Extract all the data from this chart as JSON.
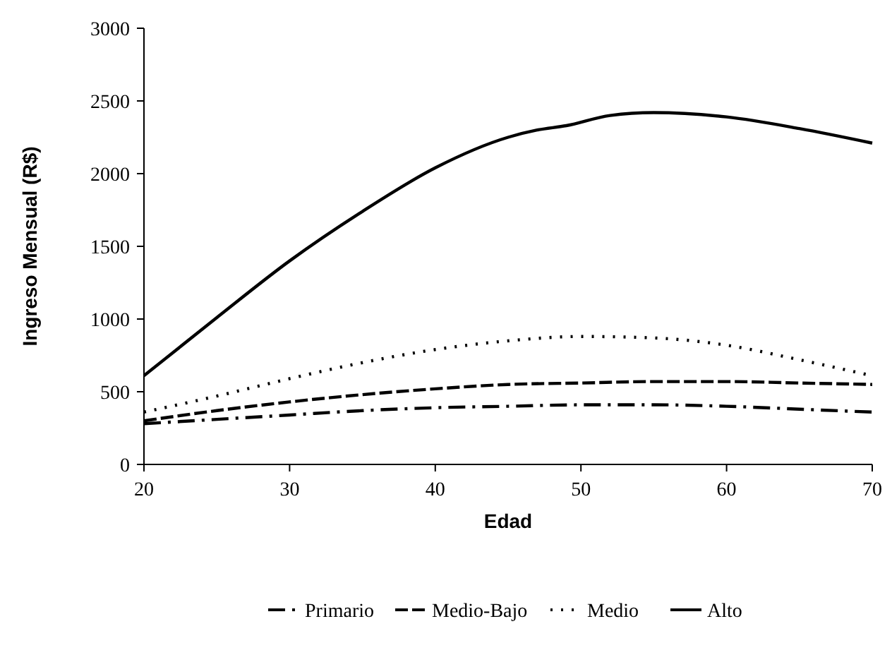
{
  "chart_data": {
    "type": "line",
    "xlabel": "Edad",
    "ylabel": "Ingreso Mensual (R$)",
    "xlim": [
      20,
      70
    ],
    "xticks": [
      20,
      30,
      40,
      50,
      60,
      70
    ],
    "ylim": [
      0,
      3000
    ],
    "yticks": [
      0,
      500,
      1000,
      1500,
      2000,
      2500,
      3000
    ],
    "grid": false,
    "legend": "bottom",
    "series": [
      {
        "name": "Primario",
        "color": "#000000",
        "line_style": "dashdot",
        "x": [
          20,
          25,
          30,
          35,
          40,
          45,
          50,
          55,
          60,
          65,
          70
        ],
        "values": [
          280,
          310,
          340,
          370,
          390,
          400,
          410,
          410,
          400,
          380,
          360
        ]
      },
      {
        "name": "Medio-Bajo",
        "color": "#000000",
        "line_style": "dashed",
        "x": [
          20,
          25,
          30,
          35,
          40,
          45,
          50,
          55,
          60,
          65,
          70
        ],
        "values": [
          300,
          370,
          430,
          480,
          520,
          550,
          560,
          570,
          570,
          560,
          550
        ]
      },
      {
        "name": "Medio",
        "color": "#000000",
        "line_style": "dotted",
        "x": [
          20,
          25,
          30,
          35,
          40,
          45,
          50,
          55,
          60,
          65,
          70
        ],
        "values": [
          360,
          470,
          590,
          700,
          790,
          850,
          880,
          870,
          820,
          720,
          610
        ]
      },
      {
        "name": "Alto",
        "color": "#000000",
        "line_style": "solid",
        "x": [
          20,
          25,
          30,
          35,
          40,
          45,
          47,
          49,
          52,
          55,
          60,
          65,
          70
        ],
        "values": [
          610,
          1010,
          1400,
          1740,
          2040,
          2250,
          2300,
          2330,
          2400,
          2420,
          2390,
          2310,
          2210
        ]
      }
    ]
  }
}
